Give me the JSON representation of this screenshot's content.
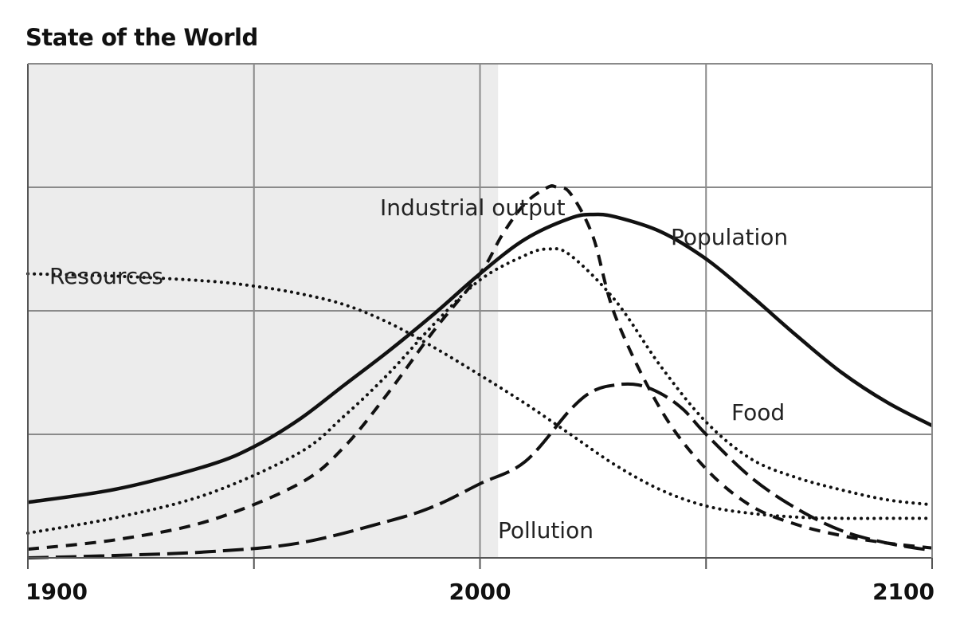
{
  "chart_data": {
    "type": "line",
    "title": "State of the World",
    "xlabel": "",
    "ylabel": "",
    "xlim": [
      1900,
      2100
    ],
    "ylim": [
      0,
      4
    ],
    "x_ticks": [
      1900,
      2000,
      2100
    ],
    "x_gridlines": [
      1950,
      2000,
      2050
    ],
    "y_gridlines": [
      1,
      2,
      3
    ],
    "grid": true,
    "shaded_region": {
      "x_from": 1900,
      "x_to": 2004,
      "color": "#ececec"
    },
    "series": [
      {
        "name": "Population",
        "style": "solid",
        "x": [
          1900,
          1920,
          1940,
          1950,
          1960,
          1970,
          1980,
          1990,
          2000,
          2010,
          2020,
          2025,
          2030,
          2040,
          2050,
          2060,
          2070,
          2080,
          2090,
          2100
        ],
        "values": [
          0.45,
          0.56,
          0.75,
          0.9,
          1.12,
          1.4,
          1.68,
          1.98,
          2.3,
          2.58,
          2.75,
          2.78,
          2.76,
          2.64,
          2.42,
          2.12,
          1.8,
          1.5,
          1.26,
          1.07
        ]
      },
      {
        "name": "Food",
        "style": "dotted",
        "x": [
          1900,
          1920,
          1940,
          1960,
          1970,
          1980,
          1990,
          2000,
          2010,
          2015,
          2020,
          2030,
          2040,
          2050,
          2060,
          2070,
          2080,
          2090,
          2100
        ],
        "values": [
          0.2,
          0.33,
          0.52,
          0.85,
          1.15,
          1.5,
          1.9,
          2.25,
          2.45,
          2.5,
          2.45,
          2.08,
          1.55,
          1.1,
          0.8,
          0.65,
          0.55,
          0.47,
          0.43
        ]
      },
      {
        "name": "Industrial output",
        "style": "dashed",
        "x": [
          1900,
          1920,
          1940,
          1960,
          1970,
          1980,
          1990,
          2000,
          2005,
          2010,
          2015,
          2017,
          2020,
          2025,
          2030,
          2040,
          2050,
          2060,
          2070,
          2080,
          2090,
          2100
        ],
        "values": [
          0.07,
          0.15,
          0.3,
          0.6,
          0.9,
          1.35,
          1.85,
          2.3,
          2.62,
          2.87,
          3.0,
          3.0,
          2.95,
          2.6,
          1.95,
          1.2,
          0.72,
          0.42,
          0.27,
          0.18,
          0.12,
          0.08
        ]
      },
      {
        "name": "Resources",
        "style": "dotted",
        "x": [
          1900,
          1920,
          1940,
          1950,
          1960,
          1970,
          1980,
          1990,
          2000,
          2010,
          2020,
          2030,
          2040,
          2050,
          2060,
          2070,
          2080,
          2090,
          2100
        ],
        "values": [
          2.3,
          2.28,
          2.24,
          2.2,
          2.14,
          2.05,
          1.9,
          1.7,
          1.48,
          1.25,
          1.0,
          0.75,
          0.55,
          0.42,
          0.36,
          0.33,
          0.32,
          0.32,
          0.32
        ]
      },
      {
        "name": "Pollution",
        "style": "long-dashed",
        "x": [
          1900,
          1920,
          1940,
          1960,
          1980,
          1990,
          2000,
          2010,
          2020,
          2025,
          2030,
          2035,
          2040,
          2045,
          2050,
          2060,
          2070,
          2080,
          2090,
          2100
        ],
        "values": [
          0.0,
          0.02,
          0.05,
          0.12,
          0.3,
          0.42,
          0.6,
          0.78,
          1.2,
          1.35,
          1.4,
          1.4,
          1.33,
          1.2,
          1.0,
          0.65,
          0.4,
          0.22,
          0.12,
          0.06
        ]
      }
    ],
    "annotations": [
      {
        "text": "Industrial output",
        "series": "Industrial output"
      },
      {
        "text": "Population",
        "series": "Population"
      },
      {
        "text": "Resources",
        "series": "Resources"
      },
      {
        "text": "Food",
        "series": "Food"
      },
      {
        "text": "Pollution",
        "series": "Pollution"
      }
    ]
  }
}
